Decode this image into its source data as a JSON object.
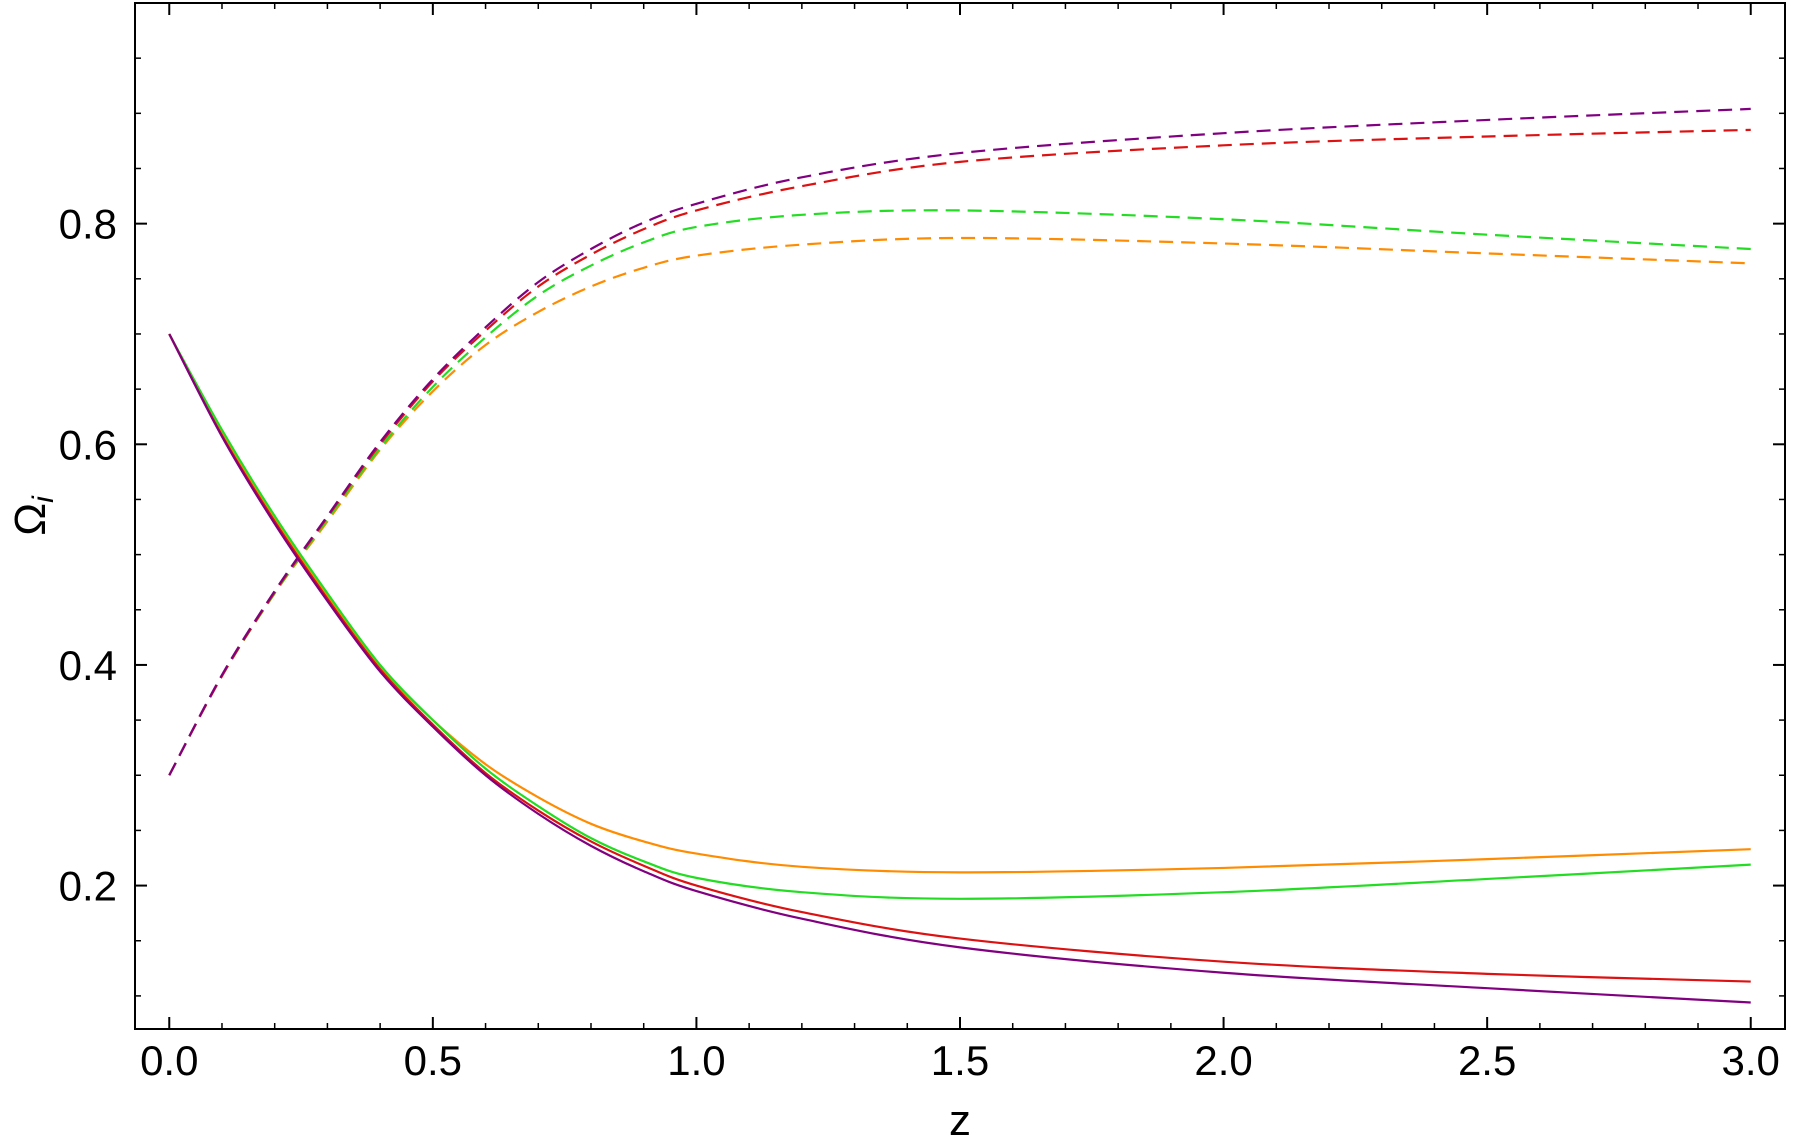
{
  "chart_data": {
    "type": "line",
    "title": "",
    "xlabel": "z",
    "ylabel": "Ω",
    "ylabel_sub": "i",
    "xlim": [
      -0.065,
      3.065
    ],
    "ylim": [
      0.07,
      1.0
    ],
    "grid": false,
    "legend": "none",
    "x_ticks": [
      {
        "value": 0.0,
        "label": "0.0"
      },
      {
        "value": 0.5,
        "label": "0.5"
      },
      {
        "value": 1.0,
        "label": "1.0"
      },
      {
        "value": 1.5,
        "label": "1.5"
      },
      {
        "value": 2.0,
        "label": "2.0"
      },
      {
        "value": 2.5,
        "label": "2.5"
      },
      {
        "value": 3.0,
        "label": "3.0"
      }
    ],
    "y_ticks": [
      {
        "value": 0.2,
        "label": "0.2"
      },
      {
        "value": 0.4,
        "label": "0.4"
      },
      {
        "value": 0.6,
        "label": "0.6"
      },
      {
        "value": 0.8,
        "label": "0.8"
      }
    ],
    "x": [
      0.0,
      0.1,
      0.2,
      0.3,
      0.4,
      0.5,
      0.6,
      0.7,
      0.8,
      0.9,
      1.0,
      1.2,
      1.5,
      2.0,
      2.5,
      3.0
    ],
    "series": [
      {
        "color": "#ff8c00",
        "dash": true,
        "values": [
          0.3,
          0.39,
          0.465,
          0.53,
          0.595,
          0.648,
          0.69,
          0.72,
          0.743,
          0.76,
          0.771,
          0.781,
          0.787,
          0.782,
          0.773,
          0.764
        ]
      },
      {
        "color": "#22dd22",
        "dash": true,
        "values": [
          0.3,
          0.39,
          0.465,
          0.532,
          0.597,
          0.652,
          0.697,
          0.735,
          0.762,
          0.783,
          0.797,
          0.808,
          0.812,
          0.804,
          0.79,
          0.777
        ]
      },
      {
        "color": "#dd1111",
        "dash": true,
        "values": [
          0.3,
          0.39,
          0.466,
          0.534,
          0.6,
          0.657,
          0.703,
          0.743,
          0.772,
          0.795,
          0.812,
          0.834,
          0.856,
          0.871,
          0.879,
          0.885
        ]
      },
      {
        "color": "#800080",
        "dash": true,
        "values": [
          0.3,
          0.391,
          0.467,
          0.535,
          0.602,
          0.659,
          0.706,
          0.747,
          0.777,
          0.801,
          0.818,
          0.842,
          0.864,
          0.882,
          0.894,
          0.904
        ]
      },
      {
        "color": "#ff8c00",
        "dash": false,
        "values": [
          0.7,
          0.61,
          0.532,
          0.462,
          0.398,
          0.35,
          0.31,
          0.28,
          0.256,
          0.24,
          0.229,
          0.217,
          0.212,
          0.216,
          0.224,
          0.233
        ]
      },
      {
        "color": "#22dd22",
        "dash": false,
        "values": [
          0.7,
          0.613,
          0.535,
          0.465,
          0.4,
          0.35,
          0.306,
          0.272,
          0.243,
          0.222,
          0.207,
          0.194,
          0.188,
          0.194,
          0.206,
          0.219
        ]
      },
      {
        "color": "#dd1111",
        "dash": false,
        "values": [
          0.7,
          0.608,
          0.53,
          0.46,
          0.396,
          0.346,
          0.302,
          0.268,
          0.24,
          0.218,
          0.2,
          0.176,
          0.152,
          0.131,
          0.12,
          0.113
        ]
      },
      {
        "color": "#800080",
        "dash": false,
        "values": [
          0.7,
          0.607,
          0.528,
          0.458,
          0.394,
          0.344,
          0.3,
          0.265,
          0.236,
          0.213,
          0.195,
          0.17,
          0.144,
          0.121,
          0.107,
          0.094
        ]
      }
    ]
  }
}
